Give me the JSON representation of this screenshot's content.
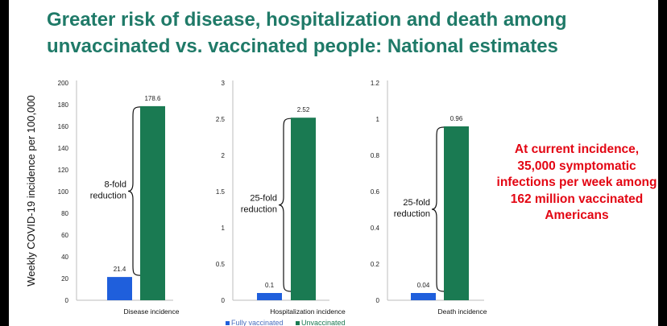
{
  "title": "Greater risk of disease, hospitalization and death among unvaccinated vs. vaccinated people: National estimates",
  "callout": "At current incidence, 35,000 symptomatic infections per week among 162 million vaccinated Americans",
  "colors": {
    "title": "#1f7a68",
    "fully_vaccinated": "#1f5fdc",
    "unvaccinated": "#1a7a52",
    "callout": "#e30613"
  },
  "chart_data": {
    "type": "bar",
    "ylabel": "Weekly COVID-19 incidence per 100,000",
    "legend": {
      "position": "bottom-center",
      "entries": [
        "Fully vaccinated",
        "Unvaccinated"
      ]
    },
    "grid": false,
    "panels": [
      {
        "category": "Disease incidence",
        "ylim": [
          0,
          200
        ],
        "ticks": [
          "0",
          "20",
          "40",
          "60",
          "80",
          "100",
          "120",
          "140",
          "160",
          "180",
          "200"
        ],
        "series": [
          {
            "name": "Fully vaccinated",
            "value": 21.4,
            "label": "21.4"
          },
          {
            "name": "Unvaccinated",
            "value": 178.6,
            "label": "178.6"
          }
        ],
        "annotation": [
          "8-fold",
          "reduction"
        ]
      },
      {
        "category": "Hospitalization incidence",
        "ylim": [
          0,
          3
        ],
        "ticks": [
          "0",
          "0.5",
          "1",
          "1.5",
          "2",
          "2.5",
          "3"
        ],
        "series": [
          {
            "name": "Fully vaccinated",
            "value": 0.1,
            "label": "0.1"
          },
          {
            "name": "Unvaccinated",
            "value": 2.52,
            "label": "2.52"
          }
        ],
        "annotation": [
          "25-fold",
          "reduction"
        ]
      },
      {
        "category": "Death incidence",
        "ylim": [
          0,
          1.2
        ],
        "ticks": [
          "0",
          "0.2",
          "0.4",
          "0.6",
          "0.8",
          "1",
          "1.2"
        ],
        "series": [
          {
            "name": "Fully vaccinated",
            "value": 0.04,
            "label": "0.04"
          },
          {
            "name": "Unvaccinated",
            "value": 0.96,
            "label": "0.96"
          }
        ],
        "annotation": [
          "25-fold",
          "reduction"
        ]
      }
    ]
  }
}
